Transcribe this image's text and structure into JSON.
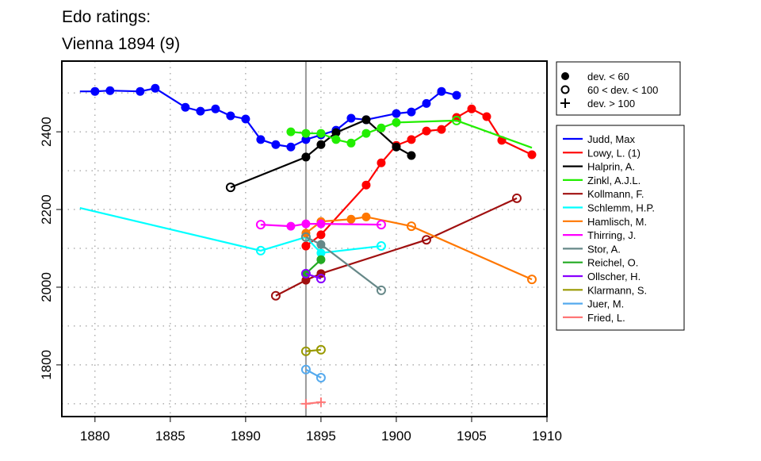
{
  "chart_data": {
    "type": "line",
    "title": [
      "Edo ratings:",
      "Vienna 1894 (9)"
    ],
    "xlabel": "",
    "ylabel": "",
    "xlim": [
      1877.8,
      1910
    ],
    "ylim": [
      1667,
      2582
    ],
    "xticks": [
      1880,
      1885,
      1890,
      1895,
      1900,
      1905,
      1910
    ],
    "yticks": [
      1800,
      2000,
      2200,
      2400
    ],
    "grid": "dotted, every 5 years and every 100 points",
    "reference_year": 1894,
    "marker_legend": [
      {
        "marker": "filled",
        "label": "dev. < 60"
      },
      {
        "marker": "open",
        "label": "60 < dev. < 100"
      },
      {
        "marker": "plus",
        "label": "dev. > 100"
      }
    ],
    "legend_placement": "right, outside plot",
    "series": [
      {
        "name": "Judd, Max",
        "color": "#0000ff",
        "points": [
          [
            1879,
            2504,
            "none"
          ],
          [
            1880,
            2504,
            "filled"
          ],
          [
            1881,
            2506,
            "filled"
          ],
          [
            1883,
            2504,
            "filled"
          ],
          [
            1884,
            2512,
            "filled"
          ],
          [
            1886,
            2463,
            "filled"
          ],
          [
            1887,
            2453,
            "filled"
          ],
          [
            1888,
            2459,
            "filled"
          ],
          [
            1889,
            2441,
            "filled"
          ],
          [
            1890,
            2433,
            "filled"
          ],
          [
            1891,
            2380,
            "filled"
          ],
          [
            1892,
            2367,
            "filled"
          ],
          [
            1893,
            2361,
            "filled"
          ],
          [
            1894,
            2380,
            "filled"
          ],
          [
            1895,
            2392,
            "filled"
          ],
          [
            1896,
            2404,
            "filled"
          ],
          [
            1897,
            2435,
            "filled"
          ],
          [
            1898,
            2431,
            "filled"
          ],
          [
            1900,
            2447,
            "filled"
          ],
          [
            1901,
            2451,
            "filled"
          ],
          [
            1902,
            2473,
            "filled"
          ],
          [
            1903,
            2504,
            "filled"
          ],
          [
            1904,
            2494,
            "filled"
          ]
        ]
      },
      {
        "name": "Lowy, L. (1)",
        "color": "#ff0000",
        "points": [
          [
            1894,
            2106,
            "filled"
          ],
          [
            1895,
            2135,
            "filled"
          ],
          [
            1898,
            2263,
            "filled"
          ],
          [
            1899,
            2320,
            "filled"
          ],
          [
            1900,
            2365,
            "filled"
          ],
          [
            1901,
            2380,
            "filled"
          ],
          [
            1902,
            2402,
            "filled"
          ],
          [
            1903,
            2406,
            "filled"
          ],
          [
            1904,
            2437,
            "filled"
          ],
          [
            1905,
            2459,
            "filled"
          ],
          [
            1906,
            2439,
            "filled"
          ],
          [
            1907,
            2378,
            "filled"
          ],
          [
            1909,
            2341,
            "filled"
          ]
        ]
      },
      {
        "name": "Halprin, A.",
        "color": "#000000",
        "points": [
          [
            1889,
            2257,
            "open"
          ],
          [
            1894,
            2335,
            "filled"
          ],
          [
            1895,
            2367,
            "filled"
          ],
          [
            1896,
            2398,
            "filled"
          ],
          [
            1898,
            2431,
            "filled"
          ],
          [
            1900,
            2361,
            "filled"
          ],
          [
            1901,
            2339,
            "filled"
          ]
        ]
      },
      {
        "name": "Zinkl, A.J.L.",
        "color": "#22ee00",
        "points": [
          [
            1893,
            2400,
            "filled"
          ],
          [
            1894,
            2396,
            "filled"
          ],
          [
            1895,
            2396,
            "filled"
          ],
          [
            1896,
            2380,
            "filled"
          ],
          [
            1897,
            2371,
            "filled"
          ],
          [
            1898,
            2396,
            "filled"
          ],
          [
            1899,
            2410,
            "filled"
          ],
          [
            1900,
            2424,
            "filled"
          ],
          [
            1904,
            2429,
            "open"
          ],
          [
            1909,
            2359,
            "none"
          ]
        ]
      },
      {
        "name": "Kollmann, F.",
        "color": "#a01010",
        "points": [
          [
            1892,
            1978,
            "open"
          ],
          [
            1894,
            2018,
            "filled"
          ],
          [
            1895,
            2035,
            "filled"
          ],
          [
            1902,
            2122,
            "open"
          ],
          [
            1908,
            2229,
            "open"
          ]
        ]
      },
      {
        "name": "Schlemm, H.P.",
        "color": "#00ffff",
        "points": [
          [
            1879,
            2204,
            "none"
          ],
          [
            1891,
            2094,
            "open"
          ],
          [
            1894,
            2129,
            "open"
          ],
          [
            1895,
            2088,
            "filled"
          ],
          [
            1899,
            2106,
            "open"
          ]
        ]
      },
      {
        "name": "Hamlisch, M.",
        "color": "#ff7700",
        "points": [
          [
            1894,
            2139,
            "filled"
          ],
          [
            1895,
            2169,
            "filled"
          ],
          [
            1897,
            2175,
            "filled"
          ],
          [
            1898,
            2181,
            "filled"
          ],
          [
            1901,
            2157,
            "open"
          ],
          [
            1909,
            2020,
            "open"
          ]
        ]
      },
      {
        "name": "Thirring, J.",
        "color": "#ff00ff",
        "points": [
          [
            1891,
            2161,
            "open"
          ],
          [
            1893,
            2157,
            "filled"
          ],
          [
            1894,
            2163,
            "filled"
          ],
          [
            1895,
            2163,
            "filled"
          ],
          [
            1899,
            2161,
            "open"
          ]
        ]
      },
      {
        "name": "Stor, A.",
        "color": "#668888",
        "points": [
          [
            1894,
            2129,
            "open"
          ],
          [
            1895,
            2110,
            "filled"
          ],
          [
            1899,
            1992,
            "open"
          ]
        ]
      },
      {
        "name": "Reichel, O.",
        "color": "#22aa22",
        "points": [
          [
            1894,
            2035,
            "filled"
          ],
          [
            1895,
            2071,
            "filled"
          ]
        ]
      },
      {
        "name": "Ollscher, H.",
        "color": "#8800ff",
        "points": [
          [
            1894,
            2035,
            "open"
          ],
          [
            1895,
            2022,
            "open"
          ]
        ]
      },
      {
        "name": "Klarmann, S.",
        "color": "#999900",
        "points": [
          [
            1894,
            1835,
            "open"
          ],
          [
            1895,
            1839,
            "open"
          ]
        ]
      },
      {
        "name": "Juer, M.",
        "color": "#55aaee",
        "points": [
          [
            1894,
            1788,
            "open"
          ],
          [
            1895,
            1767,
            "open"
          ]
        ]
      },
      {
        "name": "Fried, L.",
        "color": "#ff7777",
        "points": [
          [
            1894,
            1700,
            "plus"
          ],
          [
            1895,
            1704,
            "plus"
          ]
        ]
      }
    ]
  }
}
